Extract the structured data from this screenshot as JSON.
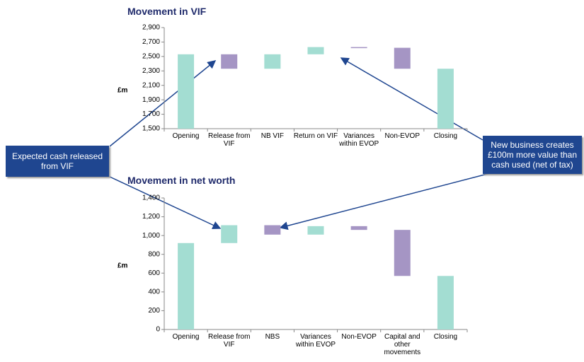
{
  "chart_data": [
    {
      "type": "waterfall",
      "title": "Movement in VIF",
      "y_label": "£m",
      "categories": [
        "Opening",
        "Release from VIF",
        "NB VIF",
        "Return on VIF",
        "Variances within EVOP",
        "Non-EVOP",
        "Closing"
      ],
      "measure": [
        "absolute",
        "relative",
        "relative",
        "relative",
        "relative",
        "relative",
        "absolute"
      ],
      "values": [
        2530,
        -200,
        200,
        100,
        -10,
        -290,
        2330
      ],
      "colors": {
        "increase": "#a3ddd2",
        "decrease": "#a595c4",
        "total": "#a3ddd2"
      },
      "ylim": [
        1500,
        2900
      ],
      "yticks": [
        {
          "value": 1500,
          "label": "1,500"
        },
        {
          "value": 1700,
          "label": "1,700"
        },
        {
          "value": 1900,
          "label": "1,900"
        },
        {
          "value": 2100,
          "label": "2,100"
        },
        {
          "value": 2300,
          "label": "2,300"
        },
        {
          "value": 2500,
          "label": "2,500"
        },
        {
          "value": 2700,
          "label": "2,700"
        },
        {
          "value": 2900,
          "label": "2,900"
        }
      ],
      "grid": false
    },
    {
      "type": "waterfall",
      "title": "Movement in net worth",
      "y_label": "£m",
      "categories": [
        "Opening",
        "Release from VIF",
        "NBS",
        "Variances within EVOP",
        "Non-EVOP",
        "Capital and other movements",
        "Closing"
      ],
      "measure": [
        "absolute",
        "relative",
        "relative",
        "relative",
        "relative",
        "relative",
        "absolute"
      ],
      "values": [
        920,
        190,
        -100,
        90,
        -40,
        -490,
        570
      ],
      "colors": {
        "increase": "#a3ddd2",
        "decrease": "#a595c4",
        "total": "#a3ddd2"
      },
      "ylim": [
        0,
        1400
      ],
      "yticks": [
        0,
        200,
        400,
        600,
        800,
        {
          "value": 1000,
          "label": "1,000"
        },
        {
          "value": 1200,
          "label": "1,200"
        },
        {
          "value": 1400,
          "label": "1,400"
        }
      ],
      "grid": false
    }
  ],
  "annotations": [
    {
      "text": "Expected cash released from VIF"
    },
    {
      "text": "New business creates £100m more value than cash used (net of tax)"
    }
  ]
}
